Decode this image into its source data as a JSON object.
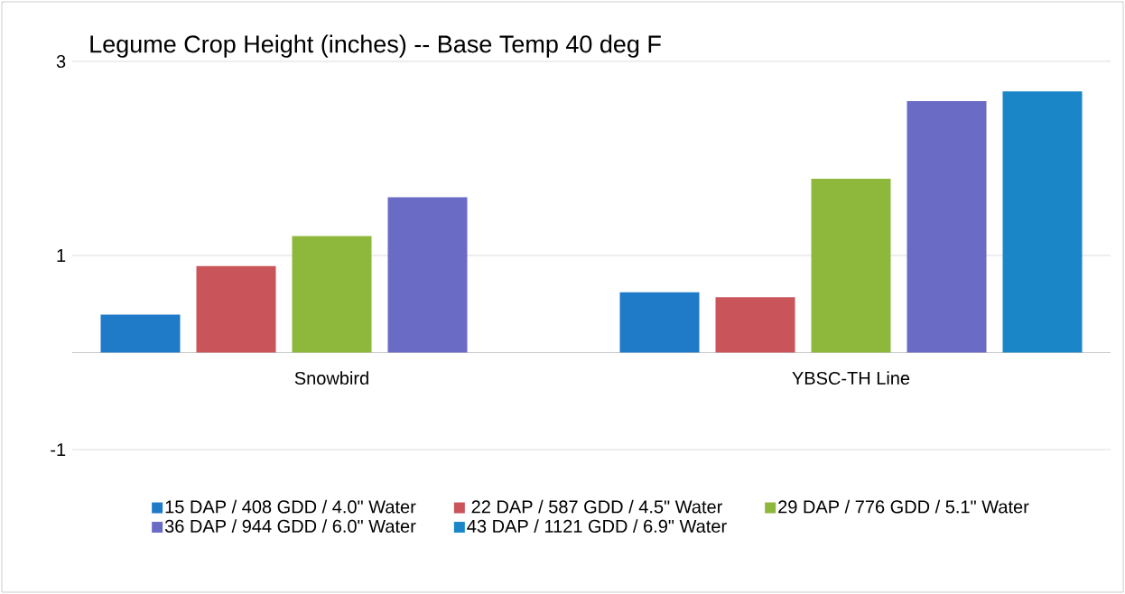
{
  "chart_data": {
    "type": "bar",
    "title": "Legume Crop Height (inches) -- Base Temp 40 deg F",
    "categories": [
      "Snowbird",
      "YBSC-TH Line"
    ],
    "series": [
      {
        "name": "15 DAP / 408 GDD / 4.0\" Water",
        "color": "#1f7bc8",
        "values": [
          0.39,
          0.62
        ]
      },
      {
        "name": "22 DAP / 587 GDD / 4.5\" Water",
        "color": "#c9545a",
        "values": [
          0.89,
          0.57
        ]
      },
      {
        "name": "29 DAP / 776 GDD / 5.1\" Water",
        "color": "#8db83c",
        "values": [
          1.2,
          1.79
        ]
      },
      {
        "name": "36 DAP / 944 GDD / 6.0\" Water",
        "color": "#6a6bc4",
        "values": [
          1.6,
          2.59
        ]
      },
      {
        "name": "43 DAP / 1121 GDD / 6.9\" Water",
        "color": "#1a86c8",
        "values": [
          null,
          2.69
        ]
      }
    ],
    "ylim": [
      -1,
      3
    ],
    "yticks": [
      -1,
      1,
      3
    ],
    "grid": "y",
    "legend": "bottom"
  }
}
